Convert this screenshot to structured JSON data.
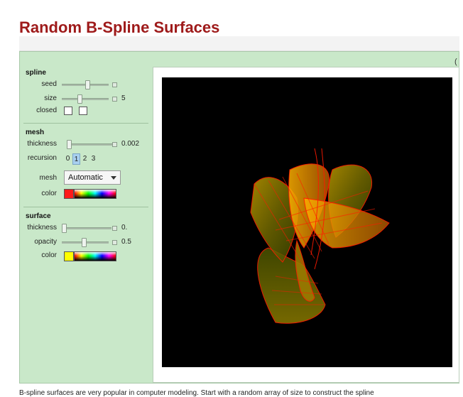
{
  "page": {
    "title": "Random B-Spline Surfaces"
  },
  "window": {
    "corner_glyph": "("
  },
  "spline": {
    "title": "spline",
    "seed_label": "seed",
    "size_label": "size",
    "size_value": "5",
    "closed_label": "closed",
    "closed_u": false,
    "closed_v": false
  },
  "mesh": {
    "title": "mesh",
    "thickness_label": "thickness",
    "thickness_value": "0.002",
    "recursion_label": "recursion",
    "recursion_options": [
      "0",
      "1",
      "2",
      "3"
    ],
    "recursion_selected": "1",
    "mesh_label": "mesh",
    "mesh_value": "Automatic",
    "color_label": "color",
    "color": "#ff1a1a"
  },
  "surface": {
    "title": "surface",
    "thickness_label": "thickness",
    "thickness_value": "0.",
    "opacity_label": "opacity",
    "opacity_value": "0.5",
    "color_label": "color",
    "color": "#ffff00"
  },
  "body_text": "B-spline surfaces are very popular in computer modeling. Start with a random array of size       to construct the spline"
}
